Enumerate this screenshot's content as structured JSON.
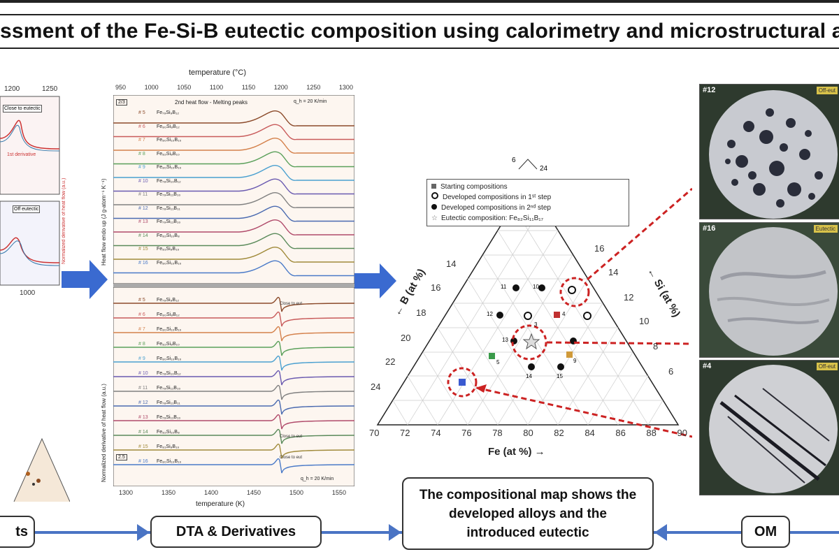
{
  "title": "ssment of the Fe-Si-B eutectic composition using calorimetry and microstructural ana",
  "left_panel": {
    "top_ticks": [
      "1200",
      "1250"
    ],
    "legend_top": "Close to eutectic",
    "legend_bottom": "Off eutectic",
    "label_derivative": "1st derivative",
    "bottom_tick": "1000",
    "y_label_right": "Normalized derivative of heat flow (a.u.)"
  },
  "dta_panel": {
    "top_axis_label": "temperature (°C)",
    "top_ticks": [
      "950",
      "1000",
      "1050",
      "1100",
      "1150",
      "1200",
      "1250",
      "1300"
    ],
    "bottom_axis_label": "temperature (K)",
    "bottom_ticks": [
      "1300",
      "1350",
      "1400",
      "1450",
      "1500",
      "1550"
    ],
    "top_title": "2nd heat flow - Melting peaks",
    "rate_top": "q_h = 20 K/min",
    "rate_bottom": "q_h = 20 K/min",
    "y_label_top": "Heat flow endo up (J g-atom⁻¹ K⁻¹)",
    "y_label_bottom": "Normalized derivative of heat flow (a.u.)",
    "scale_top": "2/3",
    "scale_bottom": "2.5",
    "rows": [
      "# 5",
      "# 6",
      "# 7",
      "# 8",
      "# 9",
      "# 10",
      "# 11",
      "# 12",
      "# 13",
      "# 14",
      "# 15",
      "# 16"
    ],
    "alloys": [
      "Fe₇₉Si₉B₁₂",
      "Fe₈₀Si₈B₁₂",
      "Fe₈₀Si₁₀B₁₀",
      "Fe₈₂Si₈B₁₀",
      "Fe₈₀Si₁₀B₁₀",
      "Fe₇₈Si₁₀B₁₂",
      "Fe₇₉Si₁₁B₁₀",
      "Fe₇₈Si₁₁B₁₁",
      "Fe₇₉Si₁₁B₁₀",
      "Fe₈₂Si₁₀B₈",
      "Fe₈₁Si₉B₁₀",
      "Fe₈₀Si₁₀B₁₀"
    ],
    "annotations_bottom": [
      "Close to eut",
      "Close to eut",
      "Close to eut"
    ],
    "row_colors": [
      "#8b4a2a",
      "#c85a5a",
      "#d4804a",
      "#5aa05a",
      "#4aa0d0",
      "#6a5ab0",
      "#808080",
      "#4a6ab0",
      "#b04a6a",
      "#5a8a5a",
      "#a08a3a",
      "#4a7ac8"
    ]
  },
  "arrows": {
    "color": "#3a6ad0"
  },
  "ternary": {
    "legend": [
      "Starting compositions",
      "Developed compositions in 1ˢᵗ step",
      "Developed compositions in 2ⁿᵈ step",
      "Eutectic composition: Fe₈₂Si₁₁B₁₇"
    ],
    "fe_axis_label": "Fe (at %) →",
    "fe_ticks": [
      "70",
      "72",
      "74",
      "76",
      "78",
      "80",
      "82",
      "84",
      "86",
      "88",
      "90"
    ],
    "b_axis_label": "← B (at %)",
    "b_ticks": [
      "14",
      "16",
      "18",
      "20",
      "22",
      "24"
    ],
    "si_axis_label": "← Si (at %)",
    "si_ticks": [
      "16",
      "14",
      "12",
      "10",
      "8",
      "6"
    ],
    "apex_ticks": [
      "6",
      "24"
    ],
    "point_labels": [
      "11",
      "10",
      "12",
      "4",
      "13",
      "14",
      "15",
      "5",
      "3",
      "9"
    ],
    "circle_color": "#cc2222"
  },
  "om": {
    "labels": [
      "#12",
      "#16",
      "#4"
    ],
    "tags": [
      "Off-eut",
      "Eutectic",
      "Off-eut"
    ]
  },
  "flow": {
    "box_left": "ts",
    "box_dta": "DTA & Derivatives",
    "box_map": "The compositional map shows the developed alloys and the introduced eutectic",
    "box_om": "OM",
    "line_color": "#4a74c4"
  }
}
